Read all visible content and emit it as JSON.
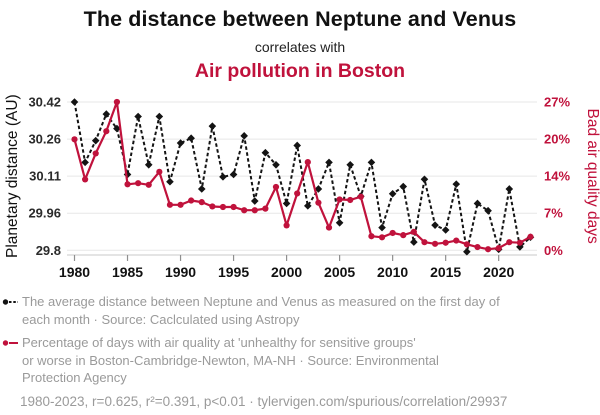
{
  "theme": {
    "accent_red": "#c0123c",
    "text_gray": "#9a9a9a",
    "grid_color": "#e7e7e7",
    "axis_line_color": "#c9c9c9",
    "series_black": "#141414"
  },
  "title": {
    "main": "The distance between Neptune and Venus",
    "connector": "correlates with",
    "secondary": "Air pollution in Boston"
  },
  "chart_data": {
    "type": "line",
    "x": [
      1980,
      1981,
      1982,
      1983,
      1984,
      1985,
      1986,
      1987,
      1988,
      1989,
      1990,
      1991,
      1992,
      1993,
      1994,
      1995,
      1996,
      1997,
      1998,
      1999,
      2000,
      2001,
      2002,
      2003,
      2004,
      2005,
      2006,
      2007,
      2008,
      2009,
      2010,
      2011,
      2012,
      2013,
      2014,
      2015,
      2016,
      2017,
      2018,
      2019,
      2020,
      2021,
      2022,
      2023
    ],
    "series": [
      {
        "name": "Average distance between Neptune and Venus (AU)",
        "axis": "left",
        "color": "#141414",
        "style": "dashed",
        "marker": "diamond",
        "values": [
          30.42,
          30.17,
          30.26,
          30.37,
          30.31,
          30.12,
          30.36,
          30.16,
          30.36,
          30.09,
          30.25,
          30.27,
          30.06,
          30.32,
          30.11,
          30.12,
          30.28,
          30.01,
          30.21,
          30.16,
          30.0,
          30.24,
          29.99,
          30.06,
          30.17,
          29.92,
          30.16,
          30.03,
          30.17,
          29.9,
          30.04,
          30.07,
          29.84,
          30.1,
          29.91,
          29.89,
          30.08,
          29.8,
          30.0,
          29.97,
          29.81,
          30.06,
          29.82,
          29.86
        ]
      },
      {
        "name": "Bad air quality days in Boston (%)",
        "axis": "right",
        "color": "#c0123c",
        "style": "solid",
        "marker": "circle",
        "values": [
          20.5,
          13.1,
          17.9,
          22.0,
          27.4,
          12.2,
          12.4,
          12.1,
          14.5,
          8.4,
          8.4,
          9.2,
          8.9,
          8.1,
          8.0,
          8.0,
          7.4,
          7.4,
          7.7,
          11.7,
          4.6,
          10.5,
          16.3,
          8.8,
          4.2,
          9.4,
          9.3,
          9.9,
          2.6,
          2.4,
          3.2,
          2.8,
          3.4,
          1.5,
          1.2,
          1.4,
          1.8,
          1.1,
          0.6,
          0.2,
          0.4,
          1.5,
          1.4,
          2.5
        ]
      }
    ],
    "left_axis": {
      "label": "Planetary distance (AU)",
      "ticks": [
        "30.42",
        "30.26",
        "30.11",
        "29.96",
        "29.8"
      ],
      "max": 30.42,
      "min": 29.806
    },
    "right_axis": {
      "label": "Bad air quality days",
      "ticks": [
        "27%",
        "20%",
        "14%",
        "7%",
        "0%"
      ],
      "max": 27.4,
      "min": 0
    },
    "x_axis": {
      "ticks": [
        1980,
        1985,
        1990,
        1995,
        2000,
        2005,
        2010,
        2015,
        2020
      ],
      "min": 1980,
      "max": 2023
    },
    "grid": true,
    "legend_position": "bottom"
  },
  "legend": [
    {
      "lines": [
        "The average distance between Neptune and Venus as measured on the first day of",
        "each month · Source: Caclculated using Astropy"
      ]
    },
    {
      "lines": [
        "Percentage of days with air quality at 'unhealthy for sensitive groups'",
        "or worse in Boston-Cambridge-Newton, MA-NH · Source: Environmental",
        "Protection Agency"
      ]
    }
  ],
  "footer": {
    "text": "1980-2023, r=0.625, r²=0.391, p<0.01 · tylervigen.com/spurious/correlation/29937"
  }
}
